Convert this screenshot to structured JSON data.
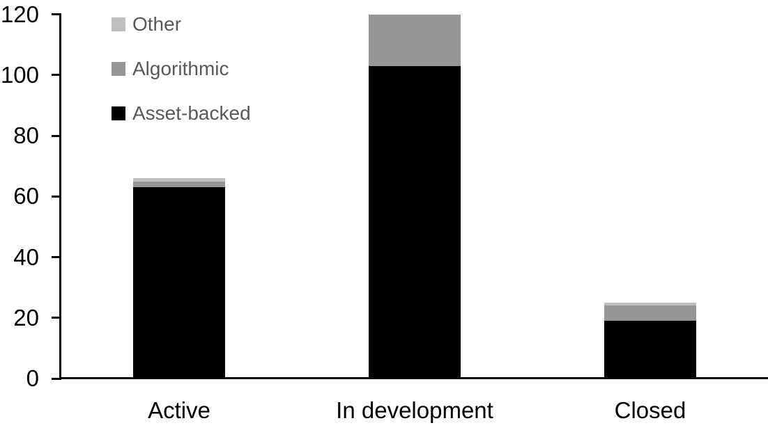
{
  "chart_data": {
    "type": "bar",
    "stacked": true,
    "title": "",
    "xlabel": "",
    "ylabel": "",
    "categories": [
      "Active",
      "In development",
      "Closed"
    ],
    "series": [
      {
        "name": "Asset-backed",
        "color": "#000000",
        "values": [
          63,
          103,
          19
        ]
      },
      {
        "name": "Algorithmic",
        "color": "#969696",
        "values": [
          2,
          17,
          5
        ]
      },
      {
        "name": "Other",
        "color": "#bfbfbf",
        "values": [
          1,
          0,
          1
        ]
      }
    ],
    "stack_totals": [
      66,
      120,
      25
    ],
    "ylim": [
      0,
      120
    ],
    "yticks": [
      0,
      20,
      40,
      60,
      80,
      100,
      120
    ],
    "grid": false,
    "legend": {
      "position": "top-left",
      "items": [
        {
          "label": "Other",
          "color": "#bfbfbf"
        },
        {
          "label": "Algorithmic",
          "color": "#969696"
        },
        {
          "label": "Asset-backed",
          "color": "#000000"
        }
      ]
    }
  },
  "colors": {
    "axis": "#000000",
    "tick_label": "#000000",
    "category_label": "#000000",
    "legend_text": "#595959",
    "background": "#ffffff"
  }
}
